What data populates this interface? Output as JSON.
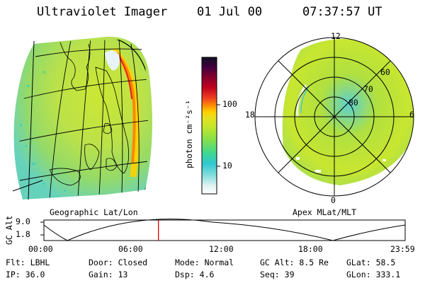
{
  "header": {
    "instrument": "Ultraviolet Imager",
    "date": "01 Jul 00",
    "time": "07:37:57 UT"
  },
  "colorbar": {
    "label": "photon cm⁻²s⁻¹",
    "ticks": [
      "100",
      "10"
    ]
  },
  "left_panel": {
    "caption": "Geographic Lat/Lon"
  },
  "right_panel": {
    "caption": "Apex MLat/MLT",
    "mlt_labels": {
      "top": "12",
      "left": "18",
      "right": "6",
      "bottom": "0"
    },
    "lat_labels": [
      "60",
      "70",
      "80"
    ]
  },
  "altitude_plot": {
    "ylabel": "GC Alt",
    "yticks": [
      "9.0",
      "1.8"
    ],
    "xticks": [
      "00:00",
      "06:00",
      "12:00",
      "18:00",
      "23:59"
    ],
    "current_time_fraction": 0.317
  },
  "info": {
    "filter": {
      "label": "Flt:",
      "value": "LBHL"
    },
    "ip": {
      "label": "IP:",
      "value": "36.0"
    },
    "door": {
      "label": "Door:",
      "value": "Closed"
    },
    "gain": {
      "label": "Gain:",
      "value": "13"
    },
    "mode": {
      "label": "Mode:",
      "value": "Normal"
    },
    "dsp": {
      "label": "Dsp:",
      "value": "4.6"
    },
    "gc_alt": {
      "label": "GC Alt:",
      "value": "8.5 Re"
    },
    "seq": {
      "label": "Seq:",
      "value": "39"
    },
    "glat": {
      "label": "GLat:",
      "value": "58.5"
    },
    "glon": {
      "label": "GLon:",
      "value": "333.1"
    }
  },
  "colors": {
    "accent_line": "#e00000",
    "background": "#ffffff"
  }
}
